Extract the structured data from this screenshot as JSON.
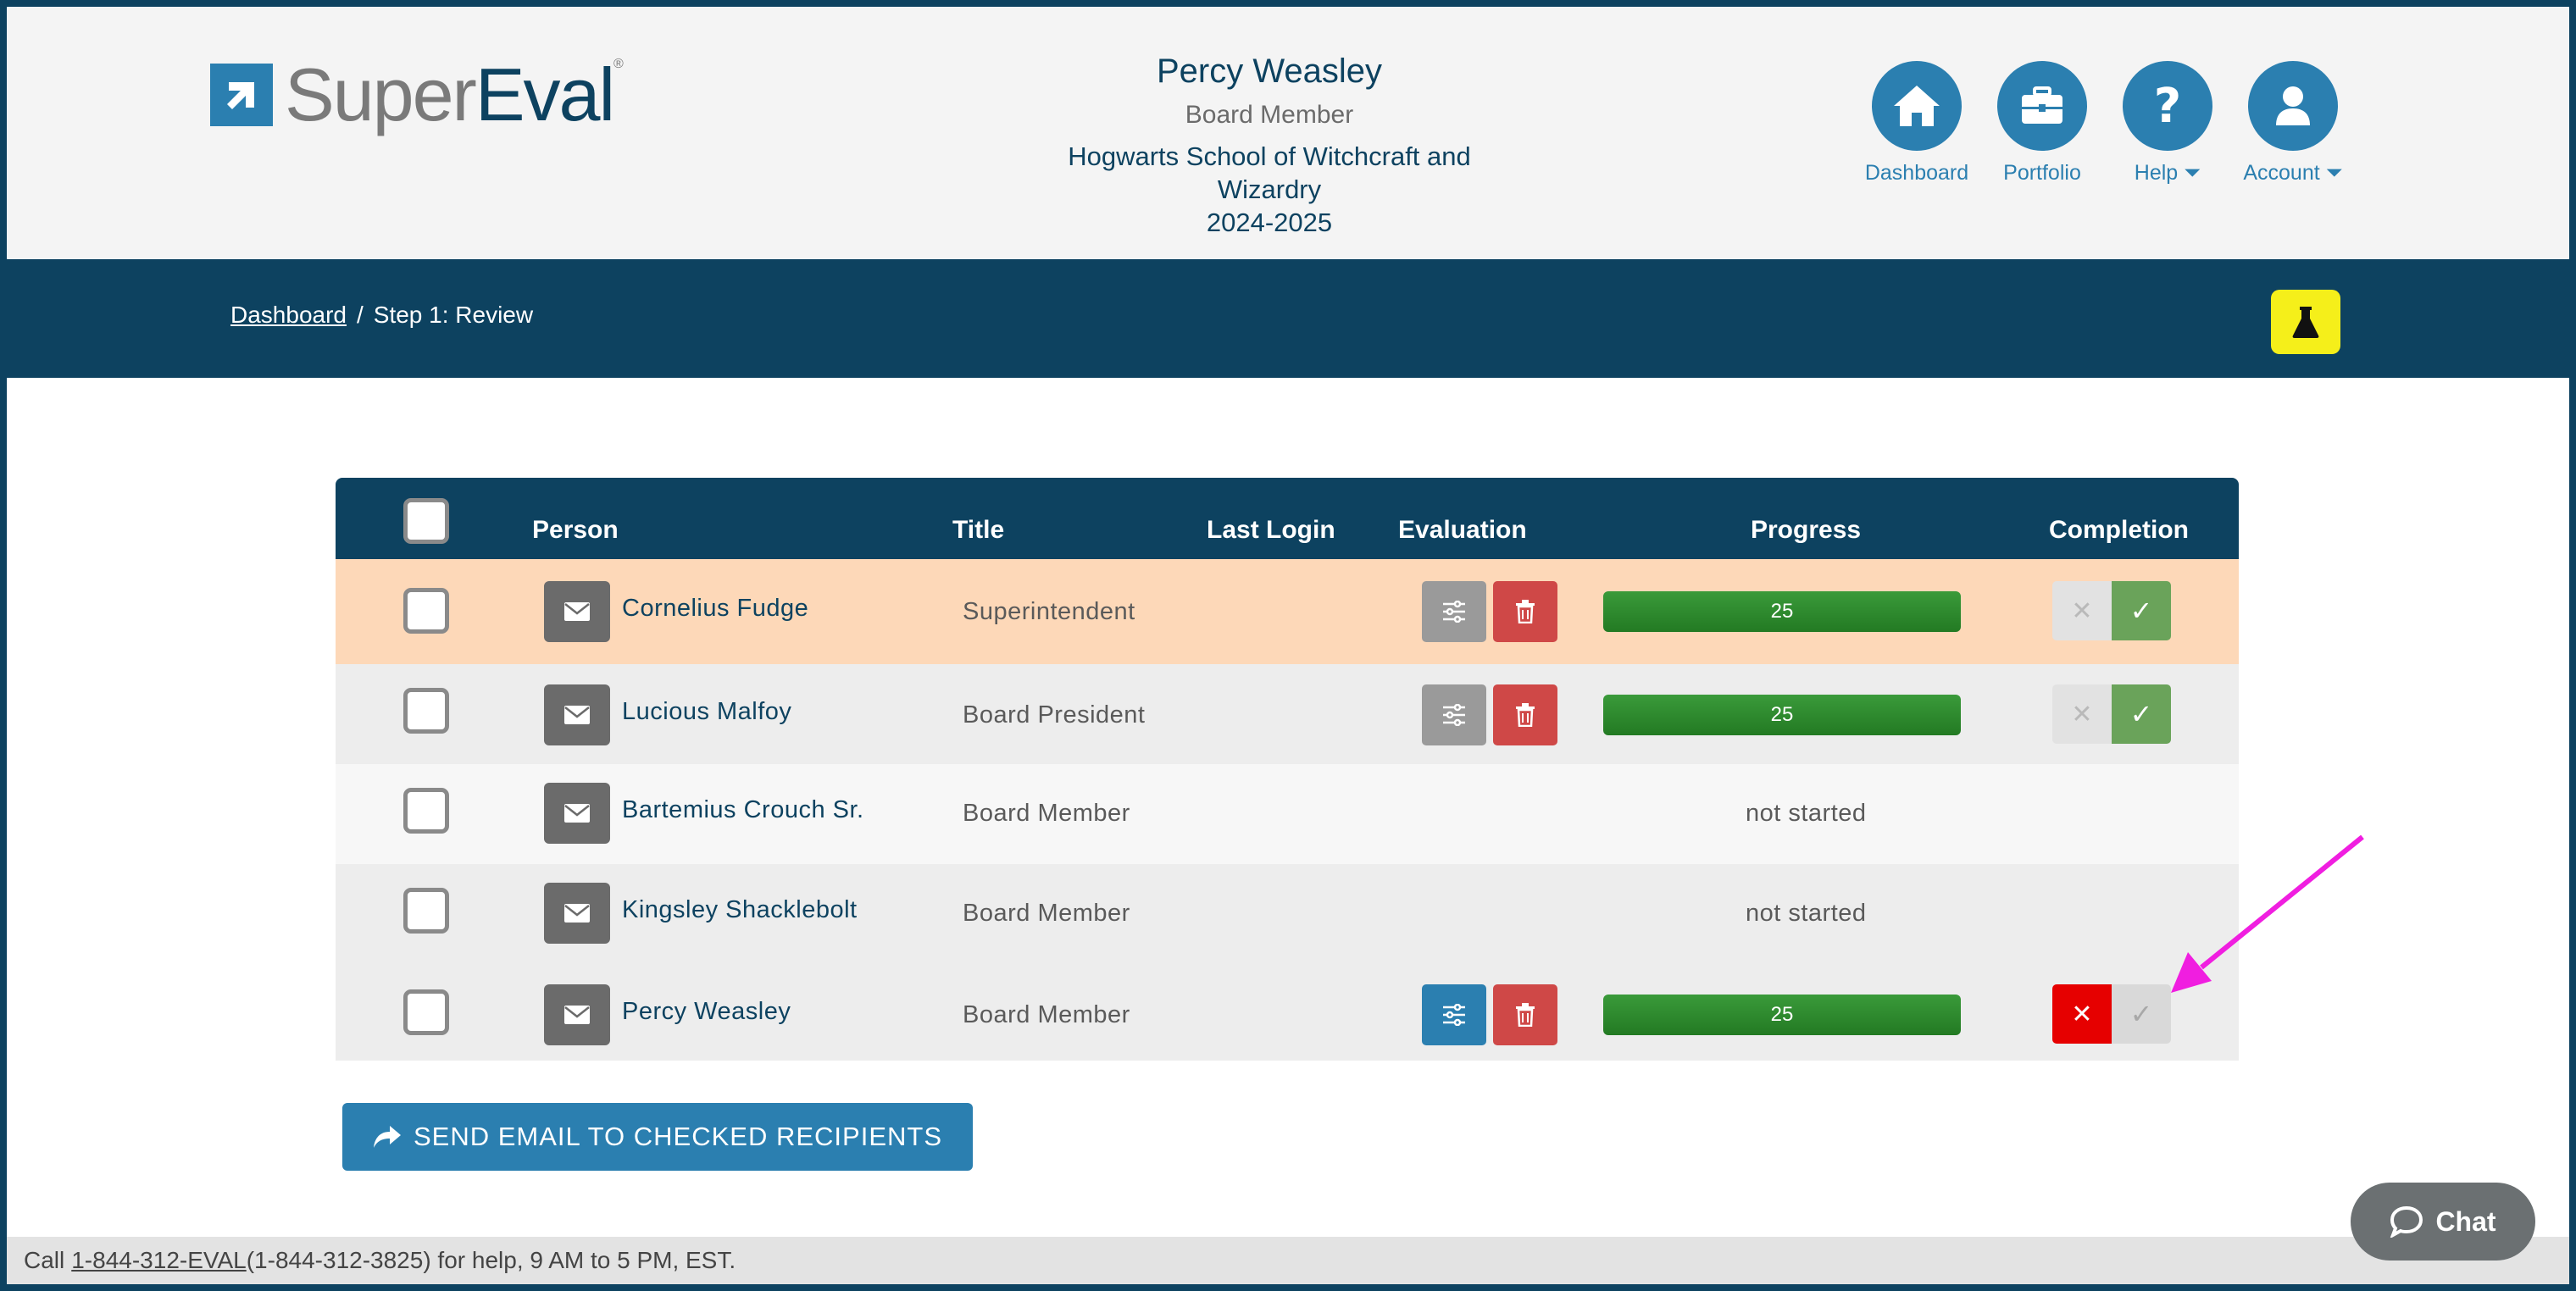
{
  "brand": {
    "name_part1": "Super",
    "name_part2": "Eval"
  },
  "user": {
    "name": "Percy Weasley",
    "role": "Board Member",
    "school_line1": "Hogwarts School of Witchcraft and",
    "school_line2": "Wizardry",
    "year": "2024-2025"
  },
  "nav": {
    "dashboard": "Dashboard",
    "portfolio": "Portfolio",
    "help": "Help",
    "account": "Account"
  },
  "breadcrumb": {
    "home": "Dashboard",
    "separator": "/",
    "current": "Step 1: Review"
  },
  "table": {
    "headers": {
      "person": "Person",
      "title": "Title",
      "last_login": "Last Login",
      "evaluation": "Evaluation",
      "progress": "Progress",
      "completion": "Completion"
    },
    "rows": [
      {
        "name": "Cornelius Fudge",
        "title": "Superintendent",
        "progress": "25",
        "completion": "complete"
      },
      {
        "name": "Lucious Malfoy",
        "title": "Board President",
        "progress": "25",
        "completion": "complete"
      },
      {
        "name": "Bartemius Crouch Sr.",
        "title": "Board Member",
        "progress": "not started"
      },
      {
        "name": "Kingsley Shacklebolt",
        "title": "Board Member",
        "progress": "not started"
      },
      {
        "name": "Percy Weasley",
        "title": "Board Member",
        "progress": "25",
        "completion": "incomplete"
      }
    ]
  },
  "actions": {
    "send_email": "SEND EMAIL TO CHECKED RECIPIENTS"
  },
  "footer": {
    "prefix": "Call ",
    "phone_link": "1-844-312-EVAL",
    "suffix": " (1-844-312-3825) for help, 9 AM to 5 PM, EST."
  },
  "chat": {
    "label": "Chat"
  },
  "colors": {
    "primary_dark": "#0d4260",
    "primary": "#2b7fb0",
    "highlight_row": "#fdd8b8",
    "progress_green": "#2b8a2b",
    "danger": "#e60000",
    "lab_yellow": "#f5ef1a",
    "annotation_arrow": "#f01ee0"
  },
  "icons": {
    "logo": "arrow-square-icon",
    "dashboard": "home-icon",
    "portfolio": "briefcase-icon",
    "help": "question-icon",
    "account": "user-icon",
    "lab": "flask-icon",
    "mail": "envelope-icon",
    "settings": "sliders-icon",
    "delete": "trash-icon",
    "close": "x-icon",
    "check": "check-icon",
    "send": "share-arrow-icon",
    "chat": "speech-bubble-icon"
  }
}
